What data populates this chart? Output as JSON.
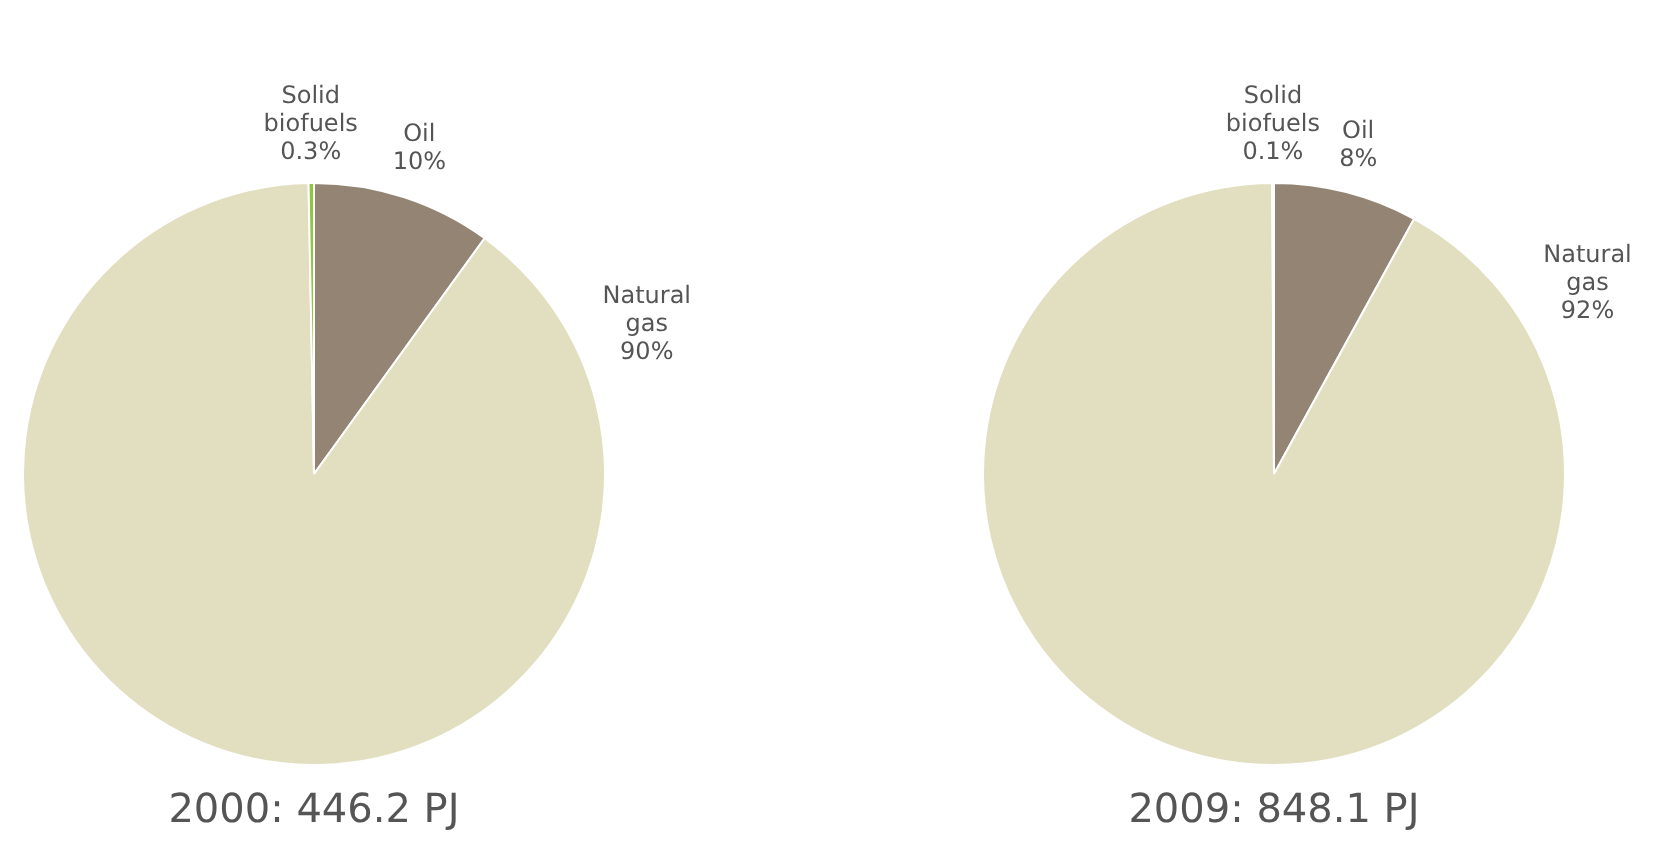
{
  "chart_data": [
    {
      "type": "pie",
      "title": "2000: 446.2 PJ",
      "categories": [
        "Oil",
        "Natural gas",
        "Solid biofuels"
      ],
      "values": [
        10,
        90,
        0.3
      ],
      "colors": [
        "#938473",
        "#e2dec0",
        "#8dc63f"
      ],
      "value_labels": [
        "10%",
        "90%",
        "0.3%"
      ]
    },
    {
      "type": "pie",
      "title": "2009: 848.1 PJ",
      "categories": [
        "Oil",
        "Natural gas",
        "Solid biofuels"
      ],
      "values": [
        8,
        92,
        0.1
      ],
      "colors": [
        "#938473",
        "#e2dec0",
        "#8dc63f"
      ],
      "value_labels": [
        "8%",
        "92%",
        "0.1%"
      ]
    }
  ]
}
